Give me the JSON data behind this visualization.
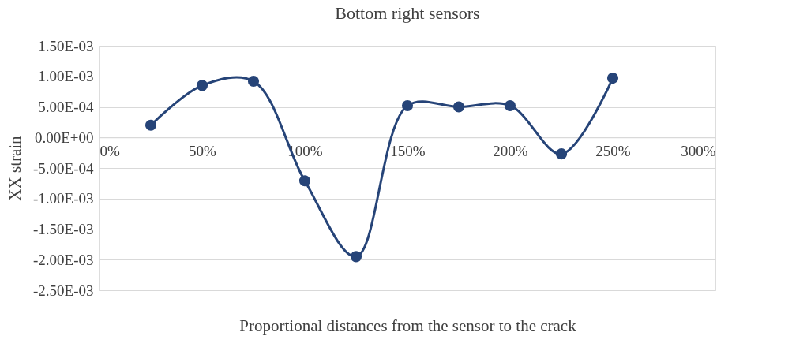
{
  "chart_data": {
    "type": "line",
    "title": "Bottom right sensors",
    "xlabel": "Proportional distances from the sensor to the crack",
    "ylabel": "XX strain",
    "x": [
      25,
      50,
      75,
      100,
      125,
      150,
      175,
      200,
      225,
      250
    ],
    "series": [
      {
        "color": "#264478",
        "values": [
          0.0002,
          0.00085,
          0.00092,
          -0.00071,
          -0.00195,
          0.00052,
          0.0005,
          0.00052,
          -0.00027,
          0.00097
        ]
      }
    ],
    "xlim": [
      0,
      300
    ],
    "xticks": [
      {
        "value": 0,
        "label": "0%"
      },
      {
        "value": 50,
        "label": "50%"
      },
      {
        "value": 100,
        "label": "100%"
      },
      {
        "value": 150,
        "label": "150%"
      },
      {
        "value": 200,
        "label": "200%"
      },
      {
        "value": 250,
        "label": "250%"
      },
      {
        "value": 300,
        "label": "300%"
      }
    ],
    "ylim": [
      -0.0025,
      0.0015
    ],
    "yticks": [
      {
        "value": 0.0015,
        "label": "1.50E-03"
      },
      {
        "value": 0.001,
        "label": "1.00E-03"
      },
      {
        "value": 0.0005,
        "label": "5.00E-04"
      },
      {
        "value": 0,
        "label": "0.00E+00"
      },
      {
        "value": -0.0005,
        "label": "-5.00E-04"
      },
      {
        "value": -0.001,
        "label": "-1.00E-03"
      },
      {
        "value": -0.0015,
        "label": "-1.50E-03"
      },
      {
        "value": -0.002,
        "label": "-2.00E-03"
      },
      {
        "value": -0.0025,
        "label": "-2.50E-03"
      }
    ],
    "grid": "y",
    "marker": "circle",
    "line_style": "solid"
  }
}
